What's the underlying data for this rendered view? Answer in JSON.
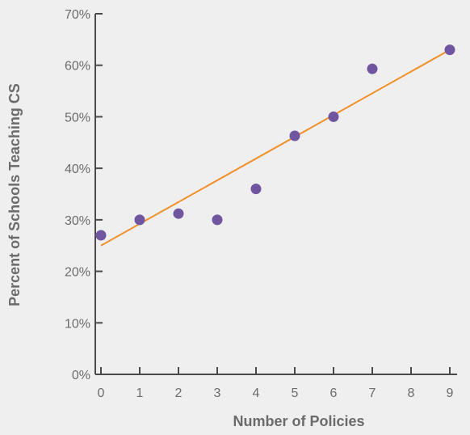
{
  "chart_data": {
    "type": "scatter",
    "title": "",
    "xlabel": "Number of Policies",
    "ylabel": "Percent of Schools Teaching CS",
    "xlim": [
      0,
      9
    ],
    "ylim": [
      0,
      70
    ],
    "x_ticks": [
      "0",
      "1",
      "2",
      "3",
      "4",
      "5",
      "6",
      "7",
      "8",
      "9"
    ],
    "y_ticks": [
      "0%",
      "10%",
      "20%",
      "30%",
      "40%",
      "50%",
      "60%",
      "70%"
    ],
    "series": [
      {
        "points": [
          {
            "x": 0,
            "y": 27
          },
          {
            "x": 1,
            "y": 30
          },
          {
            "x": 2,
            "y": 31.2
          },
          {
            "x": 3,
            "y": 30
          },
          {
            "x": 4,
            "y": 36
          },
          {
            "x": 5,
            "y": 46.3
          },
          {
            "x": 6,
            "y": 50
          },
          {
            "x": 7,
            "y": 59.3
          },
          {
            "x": 9,
            "y": 63
          }
        ],
        "color": "#7055a0"
      }
    ],
    "trendline": {
      "type": "linear",
      "start": {
        "x": 0,
        "y": 25
      },
      "end": {
        "x": 9,
        "y": 63
      },
      "color": "#f0902b"
    },
    "grid": false,
    "legend": "none"
  }
}
